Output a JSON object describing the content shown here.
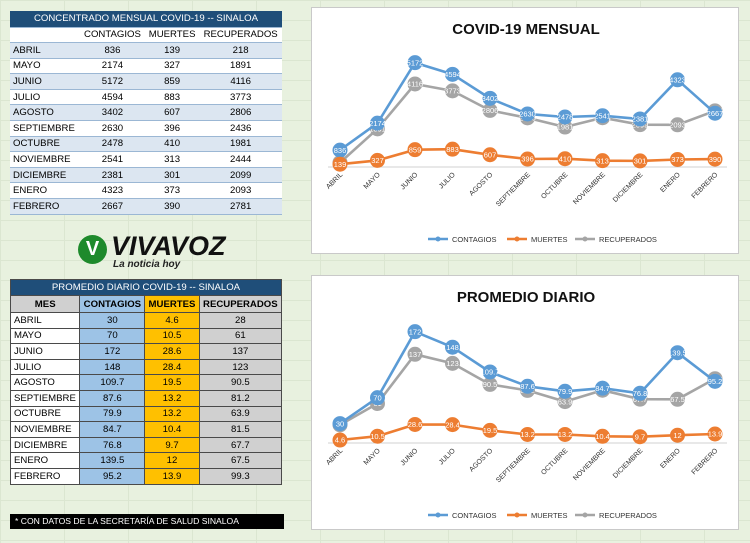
{
  "table1": {
    "title": "CONCENTRADO MENSUAL COVID-19 -- SINALOA",
    "headers": [
      "",
      "CONTAGIOS",
      "MUERTES",
      "RECUPERADOS"
    ],
    "rows": [
      [
        "ABRIL",
        "836",
        "139",
        "218"
      ],
      [
        "MAYO",
        "2174",
        "327",
        "1891"
      ],
      [
        "JUNIO",
        "5172",
        "859",
        "4116"
      ],
      [
        "JULIO",
        "4594",
        "883",
        "3773"
      ],
      [
        "AGOSTO",
        "3402",
        "607",
        "2806"
      ],
      [
        "SEPTIEMBRE",
        "2630",
        "396",
        "2436"
      ],
      [
        "OCTUBRE",
        "2478",
        "410",
        "1981"
      ],
      [
        "NOVIEMBRE",
        "2541",
        "313",
        "2444"
      ],
      [
        "DICIEMBRE",
        "2381",
        "301",
        "2099"
      ],
      [
        "ENERO",
        "4323",
        "373",
        "2093"
      ],
      [
        "FEBRERO",
        "2667",
        "390",
        "2781"
      ]
    ]
  },
  "table2": {
    "title": "PROMEDIO DIARIO COVID-19 -- SINALOA",
    "headers": [
      "MES",
      "CONTAGIOS",
      "MUERTES",
      "RECUPERADOS"
    ],
    "rows": [
      [
        "ABRIL",
        "30",
        "4.6",
        "28"
      ],
      [
        "MAYO",
        "70",
        "10.5",
        "61"
      ],
      [
        "JUNIO",
        "172",
        "28.6",
        "137"
      ],
      [
        "JULIO",
        "148",
        "28.4",
        "123"
      ],
      [
        "AGOSTO",
        "109.7",
        "19.5",
        "90.5"
      ],
      [
        "SEPTIEMBRE",
        "87.6",
        "13.2",
        "81.2"
      ],
      [
        "OCTUBRE",
        "79.9",
        "13.2",
        "63.9"
      ],
      [
        "NOVIEMBRE",
        "84.7",
        "10.4",
        "81.5"
      ],
      [
        "DICIEMBRE",
        "76.8",
        "9.7",
        "67.7"
      ],
      [
        "ENERO",
        "139.5",
        "12",
        "67.5"
      ],
      [
        "FEBRERO",
        "95.2",
        "13.9",
        "99.3"
      ]
    ]
  },
  "logo": {
    "brand": "VIVAVOZ",
    "tagline": "La noticia hoy",
    "mark": "V"
  },
  "footnote": "* CON DATOS DE LA SECRETARÍA DE SALUD SINALOA",
  "colors": {
    "contagios": "#5b9bd5",
    "muertes": "#ed7d31",
    "recuperados": "#a5a5a5",
    "header_blue": "#1f4e79"
  },
  "chart_data": [
    {
      "type": "line",
      "title": "COVID-19 MENSUAL",
      "categories": [
        "ABRIL",
        "MAYO",
        "JUNIO",
        "JULIO",
        "AGOSTO",
        "SEPTIEMBRE",
        "OCTUBRE",
        "NOVIEMBRE",
        "DICIEMBRE",
        "ENERO",
        "FEBRERO"
      ],
      "series": [
        {
          "name": "CONTAGIOS",
          "values": [
            836,
            2174,
            5172,
            4594,
            3402,
            2630,
            2478,
            2541,
            2381,
            4323,
            2667
          ],
          "labels": [
            "836",
            "2174",
            "5172",
            "4594",
            "3402",
            "2630",
            "2478",
            "2541",
            "2381",
            "4323",
            "2667"
          ]
        },
        {
          "name": "MUERTES",
          "values": [
            139,
            327,
            859,
            883,
            607,
            396,
            410,
            313,
            301,
            373,
            390
          ],
          "labels": [
            "139",
            "327",
            "859",
            "883",
            "607",
            "396",
            "410",
            "313",
            "301",
            "373",
            "390"
          ]
        },
        {
          "name": "RECUPERADOS",
          "values": [
            218,
            1891,
            4116,
            3773,
            2806,
            2436,
            1981,
            2444,
            2099,
            2093,
            2781
          ],
          "labels": [
            "218",
            "1891",
            "4116",
            "3773",
            "2806",
            "2436",
            "1981",
            "2444",
            "2099",
            "2093",
            "2781"
          ]
        }
      ],
      "ylim": [
        0,
        5700
      ],
      "legend": "bottom",
      "grid": false
    },
    {
      "type": "line",
      "title": "PROMEDIO DIARIO",
      "categories": [
        "ABRIL",
        "MAYO",
        "JUNIO",
        "JULIO",
        "AGOSTO",
        "SEPTIEMBRE",
        "OCTUBRE",
        "NOVIEMBRE",
        "DICIEMBRE",
        "ENERO",
        "FEBRERO"
      ],
      "series": [
        {
          "name": "CONTAGIOS",
          "values": [
            30,
            70,
            172,
            148,
            109.7,
            87.6,
            79.9,
            84.7,
            76.8,
            139.5,
            95.2
          ],
          "labels": [
            "30",
            "70",
            "172",
            "148",
            "109.7",
            "87.6",
            "79.9",
            "84.7",
            "76.8",
            "139.5",
            "95.2"
          ]
        },
        {
          "name": "MUERTES",
          "values": [
            4.6,
            10.5,
            28.6,
            28.4,
            19.5,
            13.2,
            13.2,
            10.4,
            9.7,
            12,
            13.9
          ],
          "labels": [
            "4.6",
            "10.5",
            "28.6",
            "28.4",
            "19.5",
            "13.2",
            "13.2",
            "10.4",
            "9.7",
            "12",
            "13.9"
          ]
        },
        {
          "name": "RECUPERADOS",
          "values": [
            28,
            61,
            137,
            123,
            90.5,
            81.2,
            63.9,
            81.5,
            67.7,
            67.5,
            99.3
          ],
          "labels": [
            "28",
            "61",
            "137",
            "123",
            "90.5",
            "81.2",
            "63.9",
            "81.5",
            "67.7",
            "67.5",
            "99.3"
          ]
        }
      ],
      "ylim": [
        0,
        190
      ],
      "legend": "bottom",
      "grid": false
    }
  ]
}
